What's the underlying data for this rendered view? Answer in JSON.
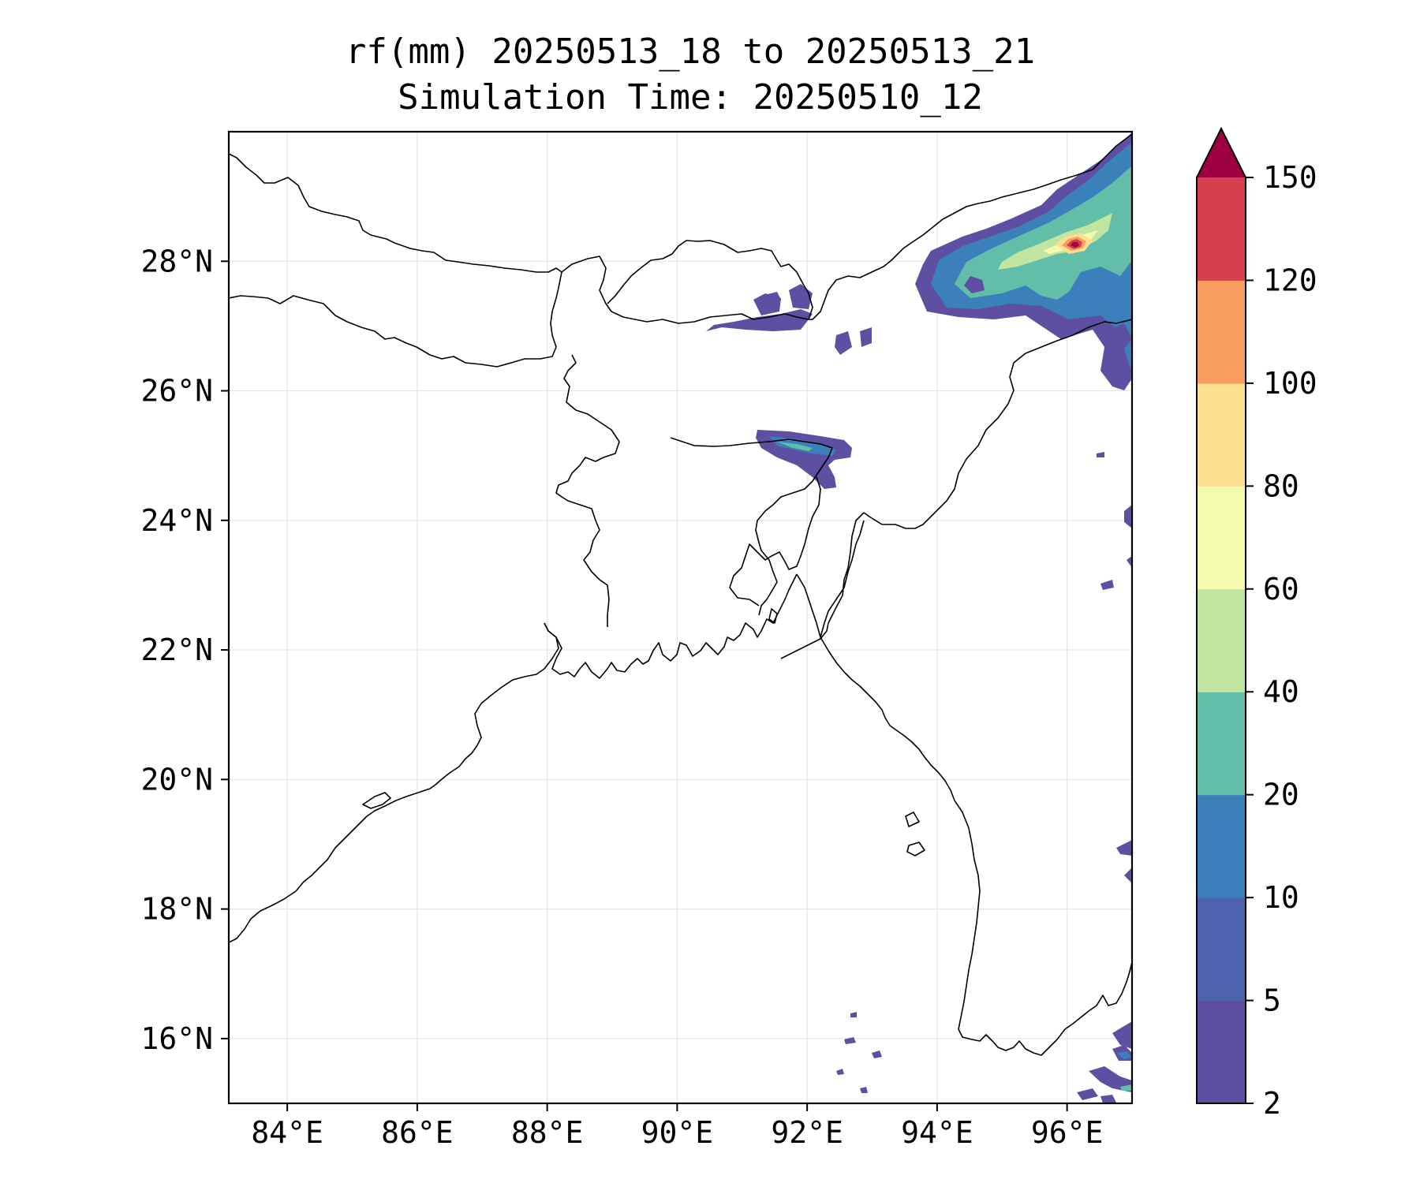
{
  "title_line1": "rf(mm) 20250513_18 to 20250513_21",
  "title_line2": "Simulation Time: 20250510_12",
  "map": {
    "lon_range": [
      83.1,
      97.0
    ],
    "lat_range": [
      15.0,
      30.0
    ],
    "lon_ticks": [
      {
        "value": 84,
        "label": "84°E"
      },
      {
        "value": 86,
        "label": "86°E"
      },
      {
        "value": 88,
        "label": "88°E"
      },
      {
        "value": 90,
        "label": "90°E"
      },
      {
        "value": 92,
        "label": "92°E"
      },
      {
        "value": 94,
        "label": "94°E"
      },
      {
        "value": 96,
        "label": "96°E"
      }
    ],
    "lat_ticks": [
      {
        "value": 16,
        "label": "16°N"
      },
      {
        "value": 18,
        "label": "18°N"
      },
      {
        "value": 20,
        "label": "20°N"
      },
      {
        "value": 22,
        "label": "22°N"
      },
      {
        "value": 24,
        "label": "24°N"
      },
      {
        "value": 26,
        "label": "26°N"
      },
      {
        "value": 28,
        "label": "28°N"
      }
    ],
    "gridlines": true
  },
  "colorbar": {
    "levels": [
      "2",
      "5",
      "10",
      "20",
      "40",
      "60",
      "80",
      "100",
      "120",
      "150"
    ],
    "colors": [
      "#5e4fa2",
      "#4e63ad",
      "#3a80bb",
      "#62bda9",
      "#bfe5a0",
      "#f4faad",
      "#fbdf8e",
      "#f89d5d",
      "#d6404e",
      "#9e0142"
    ],
    "extend": "max"
  },
  "rain_areas": [
    {
      "name": "ne-himalaya-band",
      "lon": 95.5,
      "lat": 27.95,
      "max_level": "150"
    },
    {
      "name": "meghalaya-band",
      "lon": 91.8,
      "lat": 25.3,
      "max_level": "40"
    },
    {
      "name": "bhutan-foothills",
      "lon": 91.0,
      "lat": 26.8,
      "max_level": "5"
    },
    {
      "name": "myanmar-coast",
      "lon": 96.7,
      "lat": 15.6,
      "max_level": "40"
    }
  ]
}
